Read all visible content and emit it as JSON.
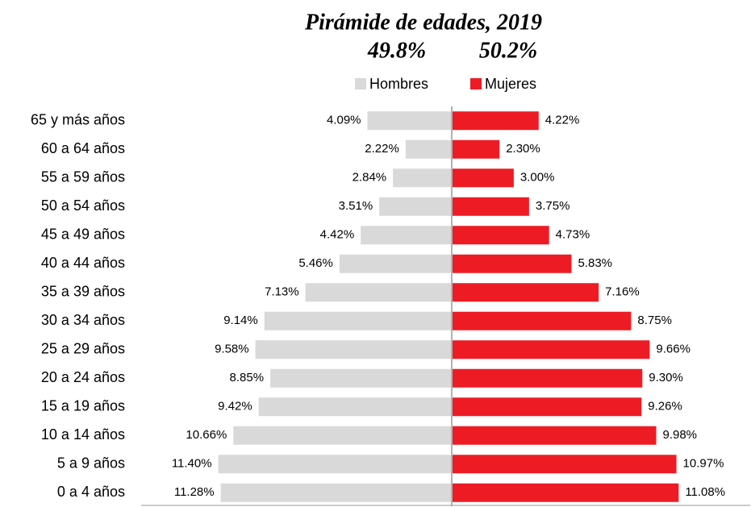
{
  "chart_data": {
    "type": "pyramid",
    "title": "Pirámide de edades, 2019",
    "annotations": [
      "49.8%",
      "50.2%"
    ],
    "categories": [
      "65 y más años",
      "60 a  64 años",
      "55 a  59 años",
      "50 a  54 años",
      "45 a  49 años",
      "40 a  44 años",
      "35 a  39 años",
      "30 a  34 años",
      "25 a  29 años",
      "20 a  24 años",
      "15 a  19 años",
      "10 a  14 años",
      "5 a  9 años",
      "0 a 4 años"
    ],
    "series": [
      {
        "name": "Hombres",
        "color": "#d9d9d9",
        "values": [
          4.09,
          2.22,
          2.84,
          3.51,
          4.42,
          5.46,
          7.13,
          9.14,
          9.58,
          8.85,
          9.42,
          10.66,
          11.4,
          11.28
        ],
        "value_labels": [
          "4.09%",
          "2.22%",
          "2.84%",
          "3.51%",
          "4.42%",
          "5.46%",
          "7.13%",
          "9.14%",
          "9.58%",
          "8.85%",
          "9.42%",
          "10.66%",
          "11.40%",
          "11.28%"
        ]
      },
      {
        "name": "Mujeres",
        "color": "#ed1c24",
        "values": [
          4.22,
          2.3,
          3.0,
          3.75,
          4.73,
          5.83,
          7.16,
          8.75,
          9.66,
          9.3,
          9.26,
          9.98,
          10.97,
          11.08
        ],
        "value_labels": [
          "4.22%",
          "2.30%",
          "3.00%",
          "3.75%",
          "4.73%",
          "5.83%",
          "7.16%",
          "8.75%",
          "9.66%",
          "9.30%",
          "9.26%",
          "9.98%",
          "10.97%",
          "11.08%"
        ]
      }
    ]
  }
}
